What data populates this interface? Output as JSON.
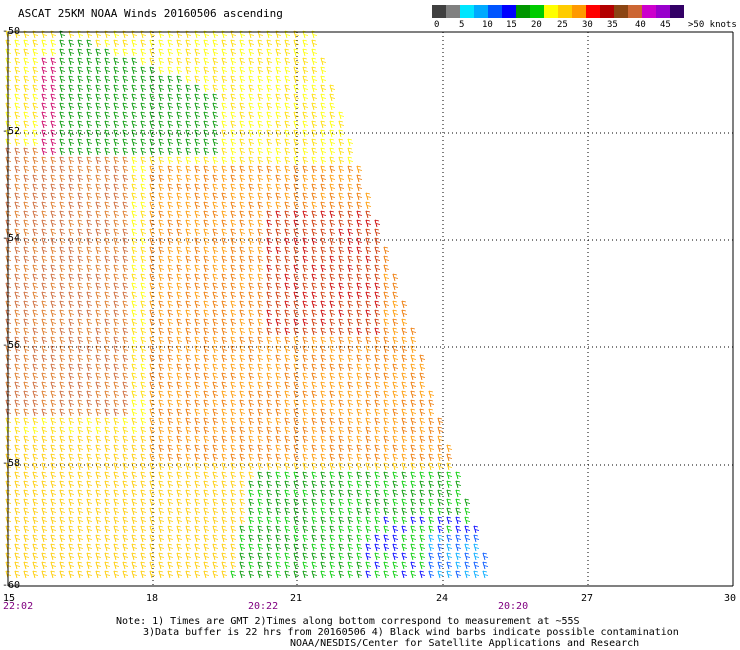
{
  "title": "ASCAT 25KM NOAA Winds 20160506 ascending",
  "legend": {
    "colors": [
      "#404040",
      "#808080",
      "#00e6ff",
      "#00aaff",
      "#0055ff",
      "#0000ff",
      "#009600",
      "#00cc00",
      "#ffff00",
      "#ffcc00",
      "#ff9900",
      "#ff0000",
      "#b30000",
      "#8b4513",
      "#cc6633",
      "#cc00cc",
      "#9900cc",
      "#330066"
    ],
    "ticks": [
      "0",
      "5",
      "10",
      "15",
      "20",
      "25",
      "30",
      "35",
      "40",
      "45",
      ">50 knots"
    ]
  },
  "lat_labels": [
    "-50",
    "-52",
    "-54",
    "-56",
    "-58",
    "-60"
  ],
  "lon_labels": [
    "15",
    "18",
    "21",
    "24",
    "27",
    "30"
  ],
  "times": [
    "22:02",
    "20:22",
    "20:20"
  ],
  "notes": {
    "line1": "Note: 1) Times are GMT 2)Times along bottom correspond to measurement at ~55S",
    "line2": "3)Data buffer is 22 hrs from 20160506 4) Black wind barbs indicate possible contamination",
    "line3": "NOAA/NESDIS/Center for Satellite Applications and Research"
  }
}
